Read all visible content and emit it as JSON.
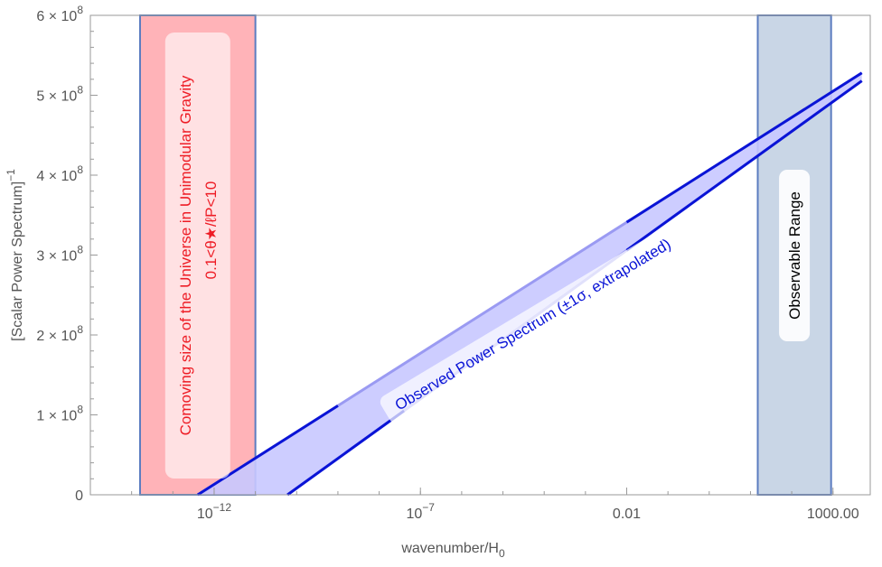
{
  "chart_data": {
    "type": "line",
    "xscale": "log",
    "xlabel": "wavenumber/H",
    "xlabel_sub": "0",
    "ylabel": "[Scalar Power Spectrum]",
    "ylabel_sup": "−1",
    "xlim": [
      1e-15,
      8000
    ],
    "ylim": [
      0,
      600000000
    ],
    "x_ticks": [
      {
        "value": 1e-12,
        "mantissa": "10",
        "exp": "−12"
      },
      {
        "value": 1e-07,
        "mantissa": "10",
        "exp": "−7"
      },
      {
        "value": 0.01,
        "mantissa": "0.01",
        "exp": ""
      },
      {
        "value": 1000,
        "mantissa": "1000.00",
        "exp": ""
      }
    ],
    "y_ticks": [
      {
        "value": 0,
        "mantissa": "0",
        "exp": ""
      },
      {
        "value": 100000000,
        "mantissa": "1 × 10",
        "exp": "8"
      },
      {
        "value": 200000000,
        "mantissa": "2 × 10",
        "exp": "8"
      },
      {
        "value": 300000000,
        "mantissa": "3 × 10",
        "exp": "8"
      },
      {
        "value": 400000000,
        "mantissa": "4 × 10",
        "exp": "8"
      },
      {
        "value": 500000000,
        "mantissa": "5 × 10",
        "exp": "8"
      },
      {
        "value": 600000000,
        "mantissa": "6 × 10",
        "exp": "8"
      }
    ],
    "bands": [
      {
        "name": "comoving-size",
        "x_range": [
          1.6e-14,
          1e-11
        ],
        "fill": "#ffb3b8",
        "stroke": "#5b7cc0",
        "label_line1": "Comoving size of the Universe in Unimodular Gravity",
        "label_line2": "0.1<θ★/ℓP<10",
        "label_color": "#ee1c25"
      },
      {
        "name": "observable-range",
        "x_range": [
          15,
          900
        ],
        "fill": "#c9d6e6",
        "stroke": "#5b7cc0",
        "label_line1": "Observable Range",
        "label_color": "#000000"
      }
    ],
    "series": [
      {
        "key": "upper",
        "x": [
          4e-13,
          5000
        ],
        "y": [
          0,
          528000000
        ]
      },
      {
        "key": "lower",
        "x": [
          6e-11,
          5000
        ],
        "y": [
          0,
          518000000
        ]
      }
    ],
    "shaded_region_label": "Observed Power Spectrum (±1σ, extrapolated)",
    "shaded_region_color": "#c8c8ff",
    "line_color": "#0a14d6",
    "extrapolated_line_color": "#9a9af2",
    "solid_segments_x": [
      [
        4e-13,
        1e-09
      ],
      [
        5e-10,
        4e-08
      ],
      [
        0.01,
        5000
      ]
    ],
    "grid": false
  }
}
